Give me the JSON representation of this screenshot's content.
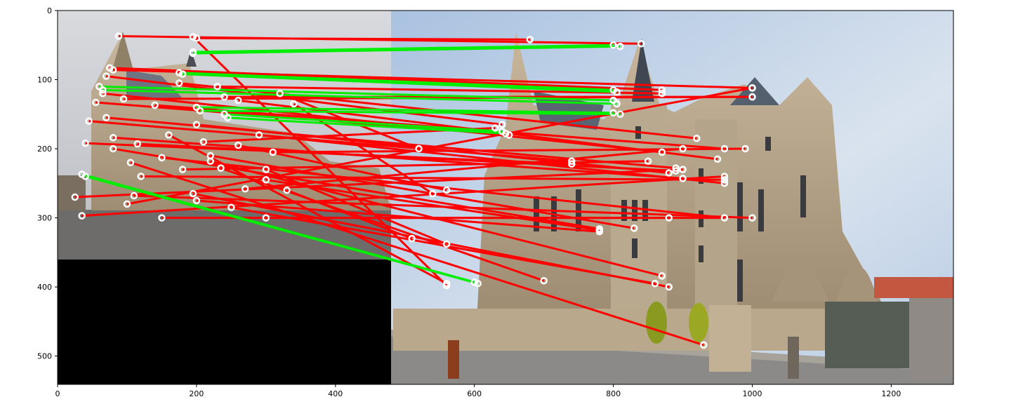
{
  "figure": {
    "x_ticks": [
      "0",
      "200",
      "400",
      "600",
      "800",
      "1000",
      "1200"
    ],
    "y_ticks": [
      "0",
      "100",
      "200",
      "300",
      "400",
      "500"
    ],
    "x_range": [
      0,
      1290
    ],
    "y_range": [
      0,
      541
    ],
    "left_image": {
      "description_colors": [
        "#c9ccd1",
        "#9a8c78",
        "#5a5a5a"
      ],
      "width": 480,
      "height": 360
    },
    "right_image": {
      "x_start": 480,
      "width": 810,
      "height": 541
    },
    "colors": {
      "inlier": "#00ee00",
      "outlier": "#ff0000",
      "keypoint": "#ffffff",
      "black_pad": "#000000"
    }
  },
  "matches": {
    "inliers": [
      [
        195,
        60,
        800,
        50
      ],
      [
        195,
        62,
        810,
        52
      ],
      [
        175,
        90,
        800,
        115
      ],
      [
        180,
        92,
        805,
        118
      ],
      [
        60,
        110,
        800,
        130
      ],
      [
        65,
        115,
        805,
        135
      ],
      [
        200,
        140,
        800,
        148
      ],
      [
        205,
        145,
        810,
        150
      ],
      [
        240,
        150,
        640,
        175
      ],
      [
        245,
        155,
        645,
        178
      ],
      [
        35,
        237,
        600,
        393
      ],
      [
        40,
        240,
        605,
        395
      ]
    ],
    "outliers": [
      [
        88,
        37,
        840,
        48
      ],
      [
        195,
        38,
        560,
        398
      ],
      [
        200,
        40,
        680,
        42
      ],
      [
        75,
        83,
        870,
        115
      ],
      [
        80,
        86,
        1000,
        112
      ],
      [
        70,
        95,
        640,
        165
      ],
      [
        175,
        105,
        920,
        185
      ],
      [
        65,
        120,
        870,
        205
      ],
      [
        95,
        128,
        1000,
        125
      ],
      [
        55,
        133,
        650,
        180
      ],
      [
        140,
        137,
        960,
        200
      ],
      [
        70,
        155,
        890,
        228
      ],
      [
        45,
        160,
        740,
        218
      ],
      [
        200,
        165,
        880,
        235
      ],
      [
        160,
        180,
        560,
        395
      ],
      [
        80,
        184,
        900,
        243
      ],
      [
        40,
        192,
        740,
        222
      ],
      [
        115,
        193,
        890,
        232
      ],
      [
        80,
        200,
        780,
        316
      ],
      [
        150,
        213,
        960,
        300
      ],
      [
        220,
        218,
        870,
        384
      ],
      [
        105,
        220,
        930,
        484
      ],
      [
        235,
        228,
        700,
        391
      ],
      [
        300,
        230,
        560,
        338
      ],
      [
        270,
        258,
        900,
        200
      ],
      [
        195,
        265,
        880,
        400
      ],
      [
        110,
        268,
        1000,
        300
      ],
      [
        25,
        270,
        900,
        230
      ],
      [
        200,
        275,
        780,
        320
      ],
      [
        100,
        280,
        1000,
        112
      ],
      [
        35,
        297,
        960,
        240
      ],
      [
        250,
        285,
        860,
        395
      ],
      [
        300,
        300,
        960,
        300
      ],
      [
        320,
        120,
        520,
        200
      ],
      [
        340,
        135,
        540,
        265
      ],
      [
        260,
        130,
        950,
        215
      ],
      [
        290,
        180,
        960,
        250
      ],
      [
        220,
        210,
        830,
        315
      ],
      [
        310,
        205,
        990,
        200
      ],
      [
        330,
        260,
        510,
        330
      ],
      [
        230,
        110,
        870,
        120
      ],
      [
        240,
        125,
        1000,
        125
      ],
      [
        300,
        245,
        780,
        318
      ],
      [
        120,
        240,
        960,
        245
      ],
      [
        150,
        300,
        880,
        300
      ],
      [
        180,
        230,
        850,
        218
      ],
      [
        210,
        190,
        630,
        170
      ],
      [
        260,
        195,
        560,
        260
      ]
    ]
  }
}
